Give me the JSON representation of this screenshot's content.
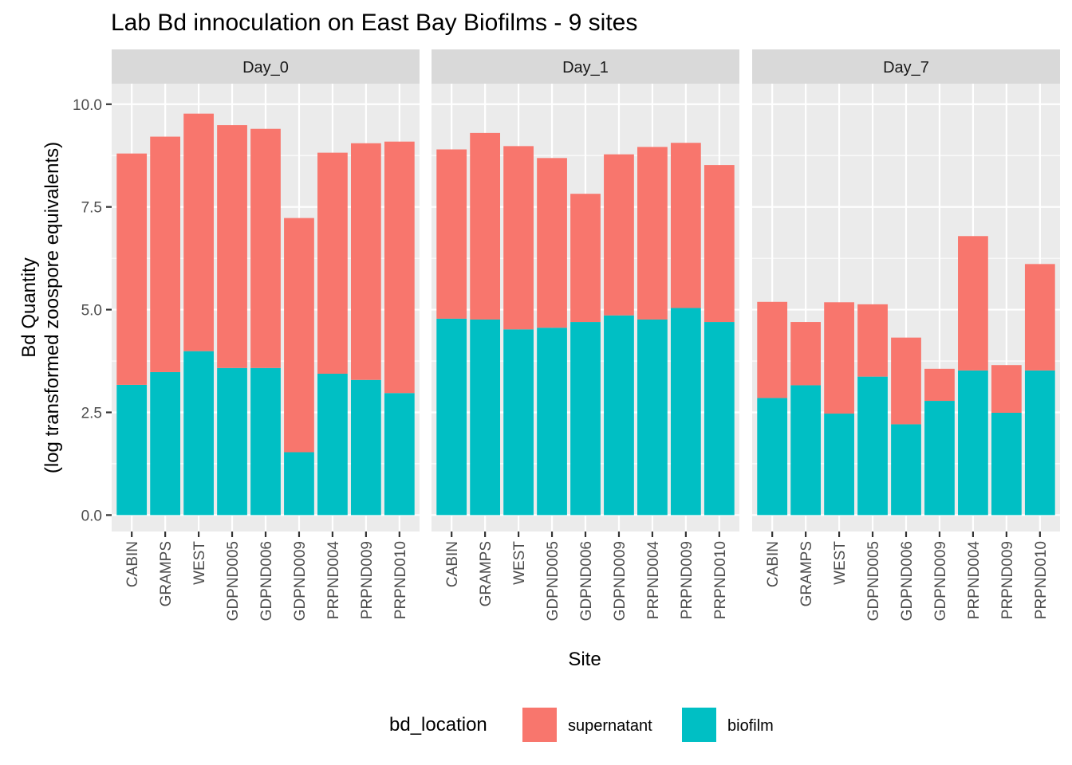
{
  "chart_data": {
    "type": "bar",
    "stacked": true,
    "title": "Lab Bd innoculation on East Bay Biofilms - 9 sites",
    "xlabel": "Site",
    "ylabel": [
      "Bd Quantity",
      "(log transformed zoospore equivalents)"
    ],
    "ylim": [
      -0.4,
      10.5
    ],
    "yticks": [
      0.0,
      2.5,
      5.0,
      7.5,
      10.0
    ],
    "ytick_labels": [
      "0.0",
      "2.5",
      "5.0",
      "7.5",
      "10.0"
    ],
    "grid": true,
    "legend_position": "bottom",
    "legend_title": "bd_location",
    "categories": [
      "CABIN",
      "GRAMPS",
      "WEST",
      "GDPND005",
      "GDPND006",
      "GDPND009",
      "PRPND004",
      "PRPND009",
      "PRPND010"
    ],
    "facets": [
      {
        "label": "Day_0",
        "series": [
          {
            "name": "biofilm",
            "values": [
              3.17,
              3.48,
              3.99,
              3.58,
              3.58,
              1.53,
              3.44,
              3.29,
              2.97
            ]
          },
          {
            "name": "supernatant",
            "values": [
              5.63,
              5.73,
              5.78,
              5.91,
              5.82,
              5.7,
              5.38,
              5.76,
              6.12
            ]
          }
        ]
      },
      {
        "label": "Day_1",
        "series": [
          {
            "name": "biofilm",
            "values": [
              4.78,
              4.76,
              4.52,
              4.56,
              4.7,
              4.86,
              4.76,
              5.04,
              4.7
            ]
          },
          {
            "name": "supernatant",
            "values": [
              4.12,
              4.54,
              4.46,
              4.13,
              3.12,
              3.92,
              4.2,
              4.02,
              3.82
            ]
          }
        ]
      },
      {
        "label": "Day_7",
        "series": [
          {
            "name": "biofilm",
            "values": [
              2.85,
              3.16,
              2.47,
              3.37,
              2.21,
              2.78,
              3.52,
              2.49,
              3.52
            ]
          },
          {
            "name": "supernatant",
            "values": [
              2.34,
              1.54,
              2.71,
              1.76,
              2.11,
              0.78,
              3.27,
              1.16,
              2.59
            ]
          }
        ]
      }
    ],
    "colors": {
      "supernatant": "#F8766D",
      "biofilm": "#00BFC4"
    },
    "legend_entries": [
      "supernatant",
      "biofilm"
    ]
  }
}
